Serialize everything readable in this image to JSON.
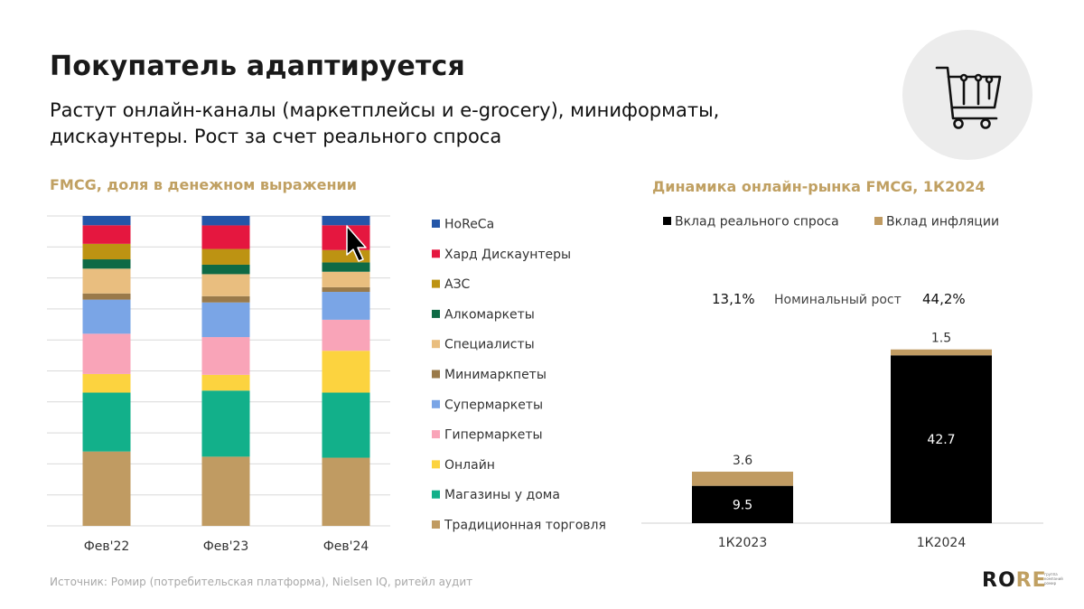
{
  "header": {
    "title": "Покупатель адаптируется",
    "subtitle": "Растут онлайн-каналы (маркетплейсы и e-grocery), миниформаты, дискаунтеры. Рост за счет реального спроса"
  },
  "icons": {
    "badge": "shopping-cart-icon",
    "cursor": "mouse-pointer-icon"
  },
  "chart_data": [
    {
      "type": "bar",
      "stacked": true,
      "title": "FMCG, доля в денежном выражении",
      "categories": [
        "Фев'22",
        "Фев'23",
        "Фев'24"
      ],
      "ylim": [
        0,
        100
      ],
      "grid": true,
      "legend_position": "right",
      "series": [
        {
          "name": "Традиционная торговля",
          "color": "#c09b62",
          "values": [
            24,
            22,
            22
          ]
        },
        {
          "name": "Магазины у дома",
          "color": "#12b08a",
          "values": [
            19,
            21,
            21
          ]
        },
        {
          "name": "Онлайн",
          "color": "#fcd33f",
          "values": [
            6,
            5,
            13.5
          ]
        },
        {
          "name": "Гипермаркеты",
          "color": "#f9a4b8",
          "values": [
            13,
            12,
            10
          ]
        },
        {
          "name": "Супермаркеты",
          "color": "#7aa5e6",
          "values": [
            11,
            11,
            9
          ]
        },
        {
          "name": "Минимаркпеты",
          "color": "#9a7a4a",
          "values": [
            2,
            2,
            1.5
          ]
        },
        {
          "name": "Специалисты",
          "color": "#e9be7f",
          "values": [
            8,
            7,
            5
          ]
        },
        {
          "name": "Алкомаркеты",
          "color": "#0e6a45",
          "values": [
            3,
            3,
            3
          ]
        },
        {
          "name": "АЗС",
          "color": "#bd9312",
          "values": [
            5,
            5,
            4
          ]
        },
        {
          "name": "Хард Дискаунтеры",
          "color": "#e5173f",
          "values": [
            6,
            7.5,
            8
          ]
        },
        {
          "name": "HoReCa",
          "color": "#2456a8",
          "values": [
            3,
            3,
            3
          ]
        }
      ]
    },
    {
      "type": "bar",
      "stacked": true,
      "title": "Динамика онлайн-рынка FMCG, 1К2024",
      "categories": [
        "1К2023",
        "1К2024"
      ],
      "legend_position": "top",
      "series": [
        {
          "name": "Вклад реального спроса",
          "color": "#000000",
          "values": [
            9.5,
            42.7
          ],
          "labels": [
            "9.5",
            "42.7"
          ]
        },
        {
          "name": "Вклад инфляции",
          "color": "#c09b62",
          "values": [
            3.6,
            1.5
          ],
          "labels": [
            "3.6",
            "1.5"
          ]
        }
      ],
      "annotation": {
        "left_value": "13,1%",
        "label": "Номинальный рост",
        "right_value": "44,2%"
      }
    }
  ],
  "footer": {
    "source": "Источник: Ромир (потребительская платформа), Nielsen IQ, ритейл аудит",
    "logo_main": "RO",
    "logo_accent": "RE",
    "logo_small": "группа компаний ромир"
  }
}
